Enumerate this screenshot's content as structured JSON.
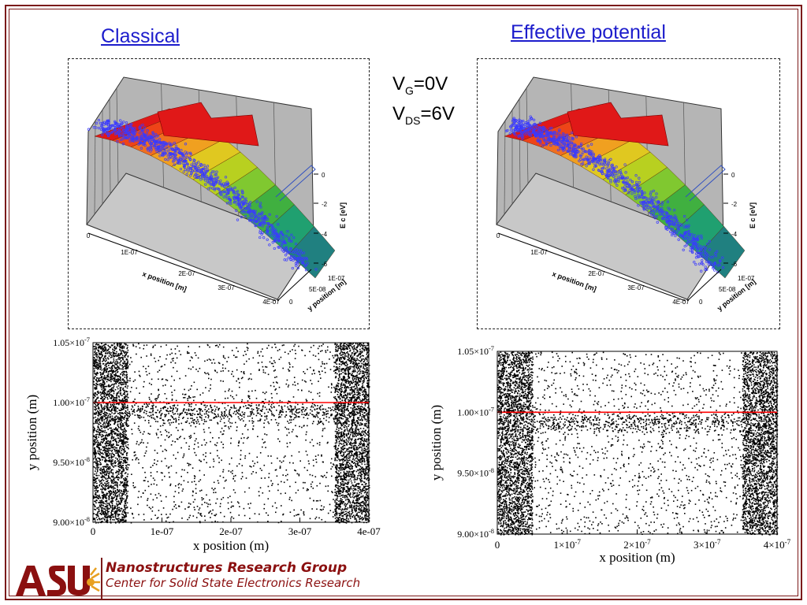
{
  "headings": {
    "left": "Classical",
    "right": "Effective potential"
  },
  "conditions": {
    "vg_main": "V",
    "vg_sub": "G",
    "vg_val": "=0V",
    "vds_main": "V",
    "vds_sub": "DS",
    "vds_val": "=6V"
  },
  "footer": {
    "group": "Nanostructures Research Group",
    "center": "Center for Solid State Electronics Research",
    "logo_text": "ASU"
  },
  "colors": {
    "accent_red": "#8b1010",
    "heading_blue": "#1c1ccc",
    "frame": "#7b1a1a",
    "particle_blue": "#3a3aff",
    "cut_line": "#ff0000"
  },
  "chart_data": [
    {
      "type": "surface3d",
      "name": "classical_3d",
      "xlabel": "x position [m]",
      "ylabel": "y position [m]",
      "zlabel": "E c [eV]",
      "xticks": [
        "0",
        "1E-07",
        "2E-07",
        "3E-07",
        "4E-07"
      ],
      "yticks": [
        "0",
        "5E-08",
        "1E-07"
      ],
      "zticks": [
        "0",
        "-2",
        "-4",
        "-6"
      ]
    },
    {
      "type": "surface3d",
      "name": "effective_3d",
      "xlabel": "x position [m]",
      "ylabel": "y position [m]",
      "zlabel": "E c [eV]",
      "xticks": [
        "0",
        "1E-07",
        "2E-07",
        "3E-07",
        "4E-07"
      ],
      "yticks": [
        "0",
        "5E-08",
        "1E-07"
      ],
      "zticks": [
        "0",
        "-2",
        "-4",
        "-6"
      ]
    },
    {
      "type": "scatter",
      "name": "classical_scatter",
      "xlabel": "x position (m)",
      "ylabel": "y position (m)",
      "xlim": [
        0,
        4e-07
      ],
      "ylim": [
        9e-08,
        1.05e-07
      ],
      "xticks": [
        {
          "v": 0,
          "label": "0"
        },
        {
          "v": 1e-07,
          "label": "1e-07"
        },
        {
          "v": 2e-07,
          "label": "2e-07"
        },
        {
          "v": 3e-07,
          "label": "3e-07"
        },
        {
          "v": 4e-07,
          "label": "4e-07"
        }
      ],
      "yticks": [
        {
          "v": 9e-08,
          "m": "9.00×10",
          "e": "-8"
        },
        {
          "v": 9.5e-08,
          "m": "9.50×10",
          "e": "-8"
        },
        {
          "v": 1e-07,
          "m": "1.00×10",
          "e": "-7"
        },
        {
          "v": 1.05e-07,
          "m": "1.05×10",
          "e": "-7"
        }
      ],
      "hline": 1e-07,
      "dense_regions": [
        [
          0,
          5e-08
        ],
        [
          3.5e-07,
          4e-07
        ]
      ]
    },
    {
      "type": "scatter",
      "name": "effective_scatter",
      "xlabel": "x position (m)",
      "ylabel": "y position (m)",
      "xlim": [
        0,
        4e-07
      ],
      "ylim": [
        9e-08,
        1.05e-07
      ],
      "xticks": [
        {
          "v": 0,
          "m": "0",
          "e": ""
        },
        {
          "v": 1e-07,
          "m": "1×10",
          "e": "-7"
        },
        {
          "v": 2e-07,
          "m": "2×10",
          "e": "-7"
        },
        {
          "v": 3e-07,
          "m": "3×10",
          "e": "-7"
        },
        {
          "v": 4e-07,
          "m": "4×10",
          "e": "-7"
        }
      ],
      "yticks": [
        {
          "v": 9e-08,
          "m": "9.00×10",
          "e": "-8"
        },
        {
          "v": 9.5e-08,
          "m": "9.50×10",
          "e": "-8"
        },
        {
          "v": 1e-07,
          "m": "1.00×10",
          "e": "-7"
        },
        {
          "v": 1.05e-07,
          "m": "1.05×10",
          "e": "-7"
        }
      ],
      "hline": 1e-07,
      "dense_regions": [
        [
          0,
          5e-08
        ],
        [
          3.5e-07,
          4e-07
        ]
      ]
    }
  ]
}
